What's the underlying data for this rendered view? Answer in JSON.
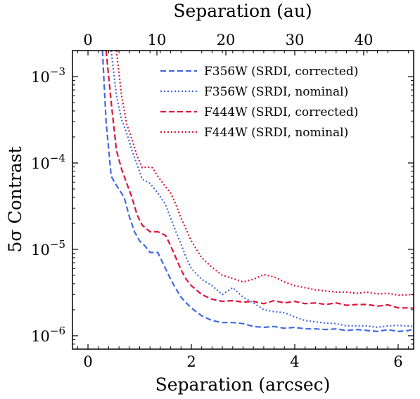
{
  "chart_data": {
    "type": "line",
    "xlabel": "Separation (arcsec)",
    "x2label": "Separation (au)",
    "ylabel": "5σ Contrast",
    "xlim": [
      -0.3,
      6.3
    ],
    "ylim": [
      7e-07,
      0.002
    ],
    "yscale": "log",
    "au_per_arcsec": 7.5,
    "x_ticks": [
      0,
      2,
      4,
      6
    ],
    "x_tick_labels": [
      "0",
      "2",
      "4",
      "6"
    ],
    "x2_ticks": [
      0,
      10,
      20,
      30,
      40
    ],
    "x2_tick_labels": [
      "0",
      "10",
      "20",
      "30",
      "40"
    ],
    "y_ticks": [
      1e-06,
      1e-05,
      0.0001,
      0.001
    ],
    "y_tick_bases": [
      "10",
      "10",
      "10",
      "10"
    ],
    "y_tick_exps": [
      "−6",
      "−5",
      "−4",
      "−3"
    ],
    "legend_position": "top-right",
    "grid": false,
    "series": [
      {
        "name": "F356W (SRDI, corrected)",
        "color": "#4169e1",
        "style": "dashed",
        "x": [
          0.28,
          0.35,
          0.45,
          0.55,
          0.7,
          0.8,
          0.9,
          1.0,
          1.1,
          1.2,
          1.35,
          1.5,
          1.6,
          1.7,
          1.8,
          1.9,
          2.0,
          2.2,
          2.4,
          2.6,
          2.8,
          3.0,
          3.2,
          3.4,
          3.6,
          3.8,
          4.0,
          4.2,
          4.4,
          4.6,
          4.8,
          5.0,
          5.2,
          5.4,
          5.6,
          5.8,
          6.0,
          6.2,
          6.3
        ],
        "y": [
          0.002,
          0.0003,
          7e-05,
          5.5e-05,
          4e-05,
          2.4e-05,
          1.6e-05,
          1.25e-05,
          1.1e-05,
          9.2e-06,
          9.2e-06,
          6e-06,
          4.5e-06,
          3.5e-06,
          2.8e-06,
          2.4e-06,
          2.1e-06,
          1.7e-06,
          1.5e-06,
          1.42e-06,
          1.42e-06,
          1.38e-06,
          1.28e-06,
          1.25e-06,
          1.28e-06,
          1.22e-06,
          1.25e-06,
          1.2e-06,
          1.2e-06,
          1.18e-06,
          1.2e-06,
          1.15e-06,
          1.18e-06,
          1.15e-06,
          1.12e-06,
          1.18e-06,
          1.12e-06,
          1.15e-06,
          1.2e-06
        ]
      },
      {
        "name": "F356W (SRDI, nominal)",
        "color": "#4169e1",
        "style": "dotted",
        "x": [
          0.45,
          0.55,
          0.65,
          0.75,
          0.85,
          0.95,
          1.05,
          1.2,
          1.35,
          1.5,
          1.6,
          1.7,
          1.8,
          1.9,
          2.0,
          2.2,
          2.4,
          2.6,
          2.8,
          3.0,
          3.2,
          3.4,
          3.6,
          3.8,
          4.0,
          4.2,
          4.4,
          4.6,
          4.8,
          5.0,
          5.2,
          5.4,
          5.6,
          5.8,
          6.0,
          6.3
        ],
        "y": [
          0.002,
          0.0006,
          0.00032,
          0.00022,
          0.00014,
          9.5e-05,
          6.5e-05,
          5.8e-05,
          4.5e-05,
          3.3e-05,
          2.3e-05,
          1.6e-05,
          1.15e-05,
          8e-06,
          6e-06,
          4.5e-06,
          3.8e-06,
          3e-06,
          3.6e-06,
          2.8e-06,
          2.4e-06,
          2e-06,
          1.9e-06,
          1.85e-06,
          1.65e-06,
          1.5e-06,
          1.45e-06,
          1.4e-06,
          1.38e-06,
          1.3e-06,
          1.3e-06,
          1.3e-06,
          1.25e-06,
          1.3e-06,
          1.32e-06,
          1.28e-06
        ]
      },
      {
        "name": "F444W (SRDI, corrected)",
        "color": "#dc143c",
        "style": "dashed",
        "x": [
          0.35,
          0.45,
          0.55,
          0.65,
          0.75,
          0.85,
          0.95,
          1.05,
          1.2,
          1.35,
          1.5,
          1.6,
          1.7,
          1.8,
          1.9,
          2.0,
          2.2,
          2.4,
          2.6,
          2.8,
          3.0,
          3.2,
          3.4,
          3.6,
          3.8,
          4.0,
          4.2,
          4.4,
          4.6,
          4.8,
          5.0,
          5.2,
          5.4,
          5.6,
          5.8,
          6.0,
          6.2,
          6.3
        ],
        "y": [
          0.002,
          0.0005,
          0.00014,
          8.5e-05,
          5.8e-05,
          4e-05,
          2.5e-05,
          1.9e-05,
          1.6e-05,
          1.6e-05,
          1.45e-05,
          1.1e-05,
          8e-06,
          5.8e-06,
          4.5e-06,
          3.8e-06,
          3e-06,
          2.65e-06,
          2.5e-06,
          2.55e-06,
          2.45e-06,
          2.5e-06,
          2.35e-06,
          2.55e-06,
          2.4e-06,
          2.5e-06,
          2.35e-06,
          2.4e-06,
          2.3e-06,
          2.4e-06,
          2.25e-06,
          2.3e-06,
          2.3e-06,
          2.2e-06,
          2.28e-06,
          2.1e-06,
          2.1e-06,
          2.08e-06
        ]
      },
      {
        "name": "F444W (SRDI, nominal)",
        "color": "#dc143c",
        "style": "dotted",
        "x": [
          0.55,
          0.65,
          0.75,
          0.85,
          0.95,
          1.05,
          1.15,
          1.25,
          1.35,
          1.5,
          1.6,
          1.7,
          1.8,
          1.9,
          2.0,
          2.2,
          2.4,
          2.6,
          2.8,
          3.0,
          3.2,
          3.4,
          3.6,
          3.8,
          4.0,
          4.2,
          4.4,
          4.6,
          4.8,
          5.0,
          5.2,
          5.4,
          5.6,
          5.8,
          6.0,
          6.3
        ],
        "y": [
          0.002,
          0.0006,
          0.00028,
          0.00019,
          0.00012,
          8.8e-05,
          9e-05,
          8.8e-05,
          7e-05,
          5.3e-05,
          4.5e-05,
          3.3e-05,
          2.3e-05,
          1.7e-05,
          1.25e-05,
          8e-06,
          6.2e-06,
          5e-06,
          4.6e-06,
          4.2e-06,
          4.5e-06,
          5.1e-06,
          4.8e-06,
          4.2e-06,
          3.8e-06,
          3.6e-06,
          3.4e-06,
          3.3e-06,
          3.2e-06,
          3.2e-06,
          3.1e-06,
          3.2e-06,
          3.05e-06,
          3.1e-06,
          2.95e-06,
          3e-06
        ]
      }
    ]
  }
}
